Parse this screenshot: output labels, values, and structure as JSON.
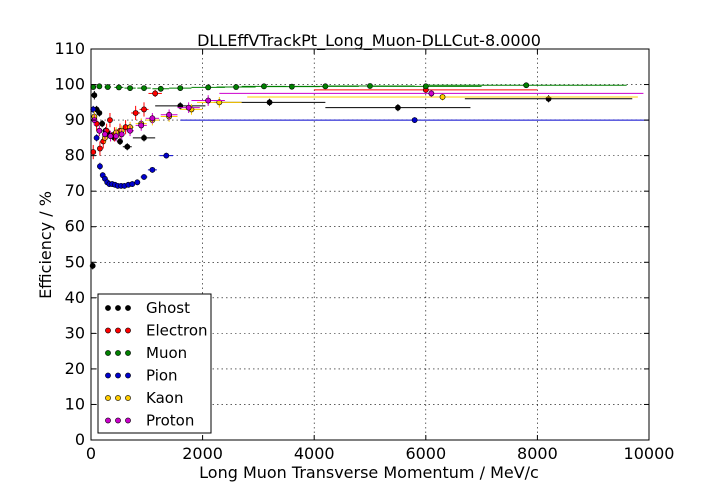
{
  "chart_data": {
    "type": "scatter",
    "title": "DLLEffVTrackPt_Long_Muon-DLLCut-8.0000",
    "xlabel": "Long Muon Transverse Momentum / MeV/c",
    "ylabel": "Efficiency / %",
    "xlim": [
      0,
      10000
    ],
    "ylim": [
      0,
      110
    ],
    "xticks": [
      "0",
      "2000",
      "4000",
      "6000",
      "8000",
      "10000"
    ],
    "yticks": [
      "0",
      "10",
      "20",
      "30",
      "40",
      "50",
      "60",
      "70",
      "80",
      "90",
      "100",
      "110"
    ],
    "grid": true,
    "legend_position": "lower-left",
    "series": [
      {
        "name": "Ghost",
        "color": "#000000",
        "points": [
          {
            "x": 30,
            "y": 49,
            "xerr": 30,
            "yerr": 1.0
          },
          {
            "x": 60,
            "y": 97,
            "xerr": 30,
            "yerr": 1.2
          },
          {
            "x": 100,
            "y": 93,
            "xerr": 20,
            "yerr": 1.0
          },
          {
            "x": 150,
            "y": 92,
            "xerr": 25,
            "yerr": 1.0
          },
          {
            "x": 200,
            "y": 89,
            "xerr": 25,
            "yerr": 1.0
          },
          {
            "x": 260,
            "y": 87,
            "xerr": 30,
            "yerr": 1.0
          },
          {
            "x": 330,
            "y": 86,
            "xerr": 35,
            "yerr": 1.0
          },
          {
            "x": 420,
            "y": 85,
            "xerr": 40,
            "yerr": 1.0
          },
          {
            "x": 520,
            "y": 84,
            "xerr": 50,
            "yerr": 1.0
          },
          {
            "x": 650,
            "y": 82.5,
            "xerr": 80,
            "yerr": 1.0
          },
          {
            "x": 950,
            "y": 85,
            "xerr": 200,
            "yerr": 1.0
          },
          {
            "x": 1600,
            "y": 94,
            "xerr": 450,
            "yerr": 1.0
          },
          {
            "x": 3200,
            "y": 95,
            "xerr": 1000,
            "yerr": 1.0
          },
          {
            "x": 5500,
            "y": 93.5,
            "xerr": 1300,
            "yerr": 1.0
          },
          {
            "x": 8200,
            "y": 96,
            "xerr": 1500,
            "yerr": 1.0
          }
        ]
      },
      {
        "name": "Electron",
        "color": "#ff0000",
        "points": [
          {
            "x": 40,
            "y": 81,
            "xerr": 30,
            "yerr": 2.0
          },
          {
            "x": 100,
            "y": 89,
            "xerr": 25,
            "yerr": 2.0
          },
          {
            "x": 160,
            "y": 82,
            "xerr": 25,
            "yerr": 2.0
          },
          {
            "x": 220,
            "y": 84,
            "xerr": 25,
            "yerr": 2.0
          },
          {
            "x": 280,
            "y": 87,
            "xerr": 30,
            "yerr": 2.0
          },
          {
            "x": 340,
            "y": 90,
            "xerr": 30,
            "yerr": 2.0
          },
          {
            "x": 420,
            "y": 86,
            "xerr": 40,
            "yerr": 2.0
          },
          {
            "x": 520,
            "y": 87,
            "xerr": 50,
            "yerr": 2.0
          },
          {
            "x": 620,
            "y": 88,
            "xerr": 50,
            "yerr": 2.0
          },
          {
            "x": 800,
            "y": 92,
            "xerr": 80,
            "yerr": 2.0
          },
          {
            "x": 950,
            "y": 93,
            "xerr": 80,
            "yerr": 2.0
          },
          {
            "x": 1150,
            "y": 97.5,
            "xerr": 120,
            "yerr": 1.0
          },
          {
            "x": 6000,
            "y": 98.5,
            "xerr": 2000,
            "yerr": 1.0
          }
        ]
      },
      {
        "name": "Muon",
        "color": "#008000",
        "points": [
          {
            "x": 40,
            "y": 99.3,
            "xerr": 30,
            "yerr": 0.3
          },
          {
            "x": 150,
            "y": 99.5,
            "xerr": 40,
            "yerr": 0.3
          },
          {
            "x": 300,
            "y": 99.3,
            "xerr": 60,
            "yerr": 0.3
          },
          {
            "x": 500,
            "y": 99.2,
            "xerr": 80,
            "yerr": 0.3
          },
          {
            "x": 700,
            "y": 99.0,
            "xerr": 100,
            "yerr": 0.3
          },
          {
            "x": 950,
            "y": 99.0,
            "xerr": 120,
            "yerr": 0.3
          },
          {
            "x": 1250,
            "y": 98.8,
            "xerr": 150,
            "yerr": 0.3
          },
          {
            "x": 1600,
            "y": 99.0,
            "xerr": 200,
            "yerr": 0.3
          },
          {
            "x": 2100,
            "y": 99.2,
            "xerr": 300,
            "yerr": 0.3
          },
          {
            "x": 2600,
            "y": 99.3,
            "xerr": 350,
            "yerr": 0.3
          },
          {
            "x": 3100,
            "y": 99.5,
            "xerr": 400,
            "yerr": 0.3
          },
          {
            "x": 3600,
            "y": 99.4,
            "xerr": 500,
            "yerr": 0.3
          },
          {
            "x": 4200,
            "y": 99.5,
            "xerr": 600,
            "yerr": 0.3
          },
          {
            "x": 5000,
            "y": 99.6,
            "xerr": 800,
            "yerr": 0.3
          },
          {
            "x": 6000,
            "y": 99.5,
            "xerr": 1000,
            "yerr": 0.3
          },
          {
            "x": 7800,
            "y": 99.8,
            "xerr": 1800,
            "yerr": 0.3
          }
        ]
      },
      {
        "name": "Pion",
        "color": "#0000cc",
        "points": [
          {
            "x": 40,
            "y": 93,
            "xerr": 30,
            "yerr": 1.0
          },
          {
            "x": 100,
            "y": 85,
            "xerr": 20,
            "yerr": 1.0
          },
          {
            "x": 160,
            "y": 77,
            "xerr": 20,
            "yerr": 1.0
          },
          {
            "x": 210,
            "y": 74.5,
            "xerr": 20,
            "yerr": 0.8
          },
          {
            "x": 250,
            "y": 73.5,
            "xerr": 20,
            "yerr": 0.8
          },
          {
            "x": 290,
            "y": 72.5,
            "xerr": 20,
            "yerr": 0.8
          },
          {
            "x": 330,
            "y": 72,
            "xerr": 20,
            "yerr": 0.8
          },
          {
            "x": 380,
            "y": 72,
            "xerr": 25,
            "yerr": 0.8
          },
          {
            "x": 430,
            "y": 71.8,
            "xerr": 25,
            "yerr": 0.8
          },
          {
            "x": 480,
            "y": 71.5,
            "xerr": 25,
            "yerr": 0.8
          },
          {
            "x": 540,
            "y": 71.5,
            "xerr": 30,
            "yerr": 0.8
          },
          {
            "x": 600,
            "y": 71.5,
            "xerr": 30,
            "yerr": 0.8
          },
          {
            "x": 670,
            "y": 71.8,
            "xerr": 35,
            "yerr": 0.8
          },
          {
            "x": 740,
            "y": 72.0,
            "xerr": 40,
            "yerr": 0.8
          },
          {
            "x": 830,
            "y": 72.5,
            "xerr": 50,
            "yerr": 0.8
          },
          {
            "x": 950,
            "y": 74,
            "xerr": 60,
            "yerr": 0.8
          },
          {
            "x": 1100,
            "y": 76,
            "xerr": 80,
            "yerr": 0.8
          },
          {
            "x": 1350,
            "y": 80,
            "xerr": 120,
            "yerr": 0.8
          },
          {
            "x": 5800,
            "y": 90,
            "xerr": 4200,
            "yerr": 0.8
          }
        ]
      },
      {
        "name": "Kaon",
        "color": "#ffcc00",
        "points": [
          {
            "x": 60,
            "y": 91,
            "xerr": 30,
            "yerr": 1.5
          },
          {
            "x": 150,
            "y": 87,
            "xerr": 30,
            "yerr": 1.5
          },
          {
            "x": 250,
            "y": 85,
            "xerr": 30,
            "yerr": 1.5
          },
          {
            "x": 350,
            "y": 85.5,
            "xerr": 30,
            "yerr": 1.5
          },
          {
            "x": 450,
            "y": 86.5,
            "xerr": 40,
            "yerr": 1.5
          },
          {
            "x": 550,
            "y": 87,
            "xerr": 50,
            "yerr": 1.5
          },
          {
            "x": 700,
            "y": 88,
            "xerr": 70,
            "yerr": 1.5
          },
          {
            "x": 900,
            "y": 89,
            "xerr": 100,
            "yerr": 1.5
          },
          {
            "x": 1100,
            "y": 90,
            "xerr": 120,
            "yerr": 1.5
          },
          {
            "x": 1400,
            "y": 91,
            "xerr": 150,
            "yerr": 1.5
          },
          {
            "x": 1800,
            "y": 93,
            "xerr": 200,
            "yerr": 1.5
          },
          {
            "x": 2300,
            "y": 95,
            "xerr": 400,
            "yerr": 1.5
          },
          {
            "x": 6300,
            "y": 96.5,
            "xerr": 3500,
            "yerr": 1.0
          }
        ]
      },
      {
        "name": "Proton",
        "color": "#cc00cc",
        "points": [
          {
            "x": 60,
            "y": 90,
            "xerr": 30,
            "yerr": 1.5
          },
          {
            "x": 150,
            "y": 87,
            "xerr": 30,
            "yerr": 1.5
          },
          {
            "x": 250,
            "y": 86,
            "xerr": 30,
            "yerr": 1.5
          },
          {
            "x": 350,
            "y": 85.5,
            "xerr": 30,
            "yerr": 1.5
          },
          {
            "x": 450,
            "y": 85.5,
            "xerr": 40,
            "yerr": 1.5
          },
          {
            "x": 550,
            "y": 86,
            "xerr": 50,
            "yerr": 1.5
          },
          {
            "x": 700,
            "y": 87,
            "xerr": 70,
            "yerr": 1.5
          },
          {
            "x": 900,
            "y": 88.5,
            "xerr": 100,
            "yerr": 1.5
          },
          {
            "x": 1100,
            "y": 90.5,
            "xerr": 120,
            "yerr": 1.5
          },
          {
            "x": 1400,
            "y": 91.5,
            "xerr": 150,
            "yerr": 1.5
          },
          {
            "x": 1750,
            "y": 93.5,
            "xerr": 200,
            "yerr": 1.5
          },
          {
            "x": 2100,
            "y": 95.5,
            "xerr": 300,
            "yerr": 1.5
          },
          {
            "x": 6100,
            "y": 97.5,
            "xerr": 3800,
            "yerr": 1.0
          }
        ]
      }
    ]
  }
}
